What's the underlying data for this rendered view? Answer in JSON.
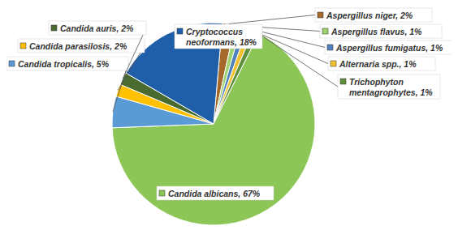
{
  "chart_data": {
    "type": "pie",
    "categories": [
      "Aspergillus niger",
      "Aspergillus flavus",
      "Aspergillus fumigatus",
      "Alternaria spp.",
      "Trichophyton mentagrophytes",
      "Candida albicans",
      "Candida tropicalis",
      "Candida parasilosis",
      "Candida auris",
      "Cryptococcus neoformans"
    ],
    "values": [
      2,
      1,
      1,
      1,
      1,
      67,
      5,
      2,
      2,
      18
    ],
    "value_labels": [
      "Aspergillus niger, 2%",
      "Aspergillus flavus, 1%",
      "Aspergillus fumigatus, 1%",
      "Alternaria spp., 1%",
      "Trichophyton mentagrophytes, 1%",
      "Candida albicans, 67%",
      "Candida tropicalis, 5%",
      "Candida parasilosis, 2%",
      "Candida auris, 2%",
      "Cryptococcus neoformans, 18%"
    ],
    "colors": [
      "#a5692b",
      "#9dd26c",
      "#4f81bd",
      "#f2c12e",
      "#5f8f3c",
      "#8cc657",
      "#5b9bd5",
      "#ffc000",
      "#4a6b2f",
      "#1f5ea8"
    ],
    "data_labels": true
  }
}
